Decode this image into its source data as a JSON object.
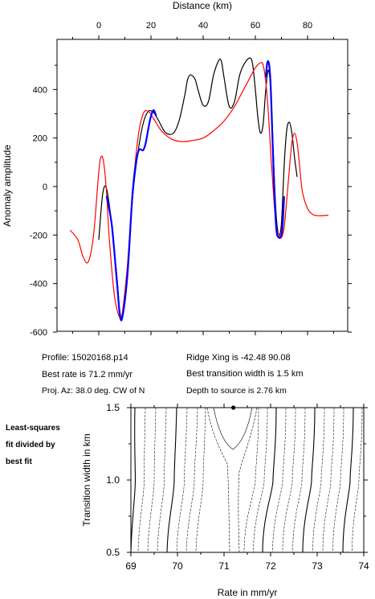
{
  "chart_data": [
    {
      "type": "line",
      "title": "",
      "xlabel": "Distance (km)",
      "ylabel": "Anomaly amplitude",
      "xlim": [
        -10,
        92
      ],
      "ylim": [
        -600,
        600
      ],
      "x_ticks": [
        "0",
        "20",
        "40",
        "60",
        "80"
      ],
      "y_ticks": [
        "-600",
        "-400",
        "-200",
        "0",
        "200",
        "400"
      ],
      "grid": false,
      "series": [
        {
          "color": "#000000",
          "x": [
            0,
            1.5,
            3,
            5,
            7,
            8,
            9,
            11,
            13,
            15,
            17,
            19,
            21,
            23,
            25,
            27,
            29,
            31,
            33,
            34,
            35,
            36,
            37,
            38,
            40,
            42,
            44,
            46,
            47,
            48,
            50,
            52,
            54,
            56,
            58,
            59,
            60,
            61,
            62,
            63,
            64,
            65,
            66,
            67,
            68,
            69,
            70,
            71,
            72,
            73,
            74,
            75,
            76
          ],
          "y": [
            -220,
            -30,
            -10,
            -160,
            -380,
            -510,
            -540,
            -360,
            -40,
            140,
            260,
            310,
            305,
            270,
            230,
            215,
            225,
            280,
            380,
            440,
            460,
            455,
            440,
            400,
            335,
            350,
            460,
            520,
            515,
            450,
            330,
            350,
            460,
            510,
            530,
            500,
            400,
            280,
            220,
            260,
            400,
            480,
            380,
            100,
            -120,
            -200,
            -150,
            80,
            230,
            265,
            220,
            120,
            40
          ]
        },
        {
          "color": "#ff0000",
          "x": [
            -11,
            -8,
            -6,
            -4,
            -2,
            0,
            1,
            2,
            3,
            4,
            6,
            8,
            9,
            11,
            13,
            15,
            17,
            19,
            21,
            24,
            28,
            32,
            36,
            40,
            44,
            48,
            52,
            55,
            58,
            60,
            62,
            63,
            64,
            65,
            66,
            67,
            68,
            69,
            70,
            71,
            72,
            73,
            74,
            75,
            76,
            77,
            78,
            80,
            82,
            84,
            86,
            88
          ],
          "y": [
            -180,
            -220,
            -290,
            -310,
            -200,
            60,
            125,
            90,
            -30,
            -210,
            -450,
            -540,
            -520,
            -320,
            -20,
            200,
            300,
            310,
            280,
            230,
            195,
            185,
            190,
            200,
            230,
            270,
            330,
            390,
            450,
            490,
            510,
            500,
            430,
            300,
            120,
            -40,
            -160,
            -200,
            -210,
            -170,
            -60,
            70,
            180,
            220,
            180,
            80,
            -20,
            -90,
            -115,
            -120,
            -120,
            -118
          ]
        },
        {
          "color": "#0000ff",
          "x": [
            3,
            5,
            7,
            8,
            9,
            11,
            13,
            15,
            17,
            18,
            19,
            20,
            21,
            22
          ],
          "y": [
            -40,
            -160,
            -400,
            -520,
            -540,
            -360,
            -20,
            140,
            150,
            180,
            240,
            290,
            315,
            290
          ]
        },
        {
          "color": "#0000ff",
          "x": [
            64,
            64.5,
            65,
            65.5,
            66,
            67,
            68,
            69,
            70,
            70.5,
            71
          ],
          "y": [
            450,
            505,
            515,
            480,
            380,
            60,
            -170,
            -210,
            -200,
            -150,
            -40
          ]
        }
      ]
    },
    {
      "type": "contour",
      "title": "",
      "xlabel": "Rate in mm/yr",
      "ylabel": "Transition width in km",
      "xlim": [
        69,
        74
      ],
      "ylim": [
        0.5,
        1.5
      ],
      "x_ticks": [
        "69",
        "70",
        "71",
        "72",
        "73",
        "74"
      ],
      "y_ticks": [
        "0.5",
        "1.0",
        "1.5"
      ],
      "best_fit_marker": {
        "x": 71.2,
        "y": 1.5
      },
      "grid": false
    }
  ],
  "info": {
    "profile": "Profile: 15020168.p14",
    "best_rate": "Best rate is 71.2 mm/yr",
    "proj_az": "Proj. Az: 38.0 deg. CW of N",
    "ridge_xing": "Ridge Xing is -42.48 90.08",
    "best_width": "Best transition width is 1.5 km",
    "depth": "Depth to source is   2.76 km"
  },
  "side_label": [
    "Least-squares",
    "fit divided by",
    "best fit"
  ]
}
